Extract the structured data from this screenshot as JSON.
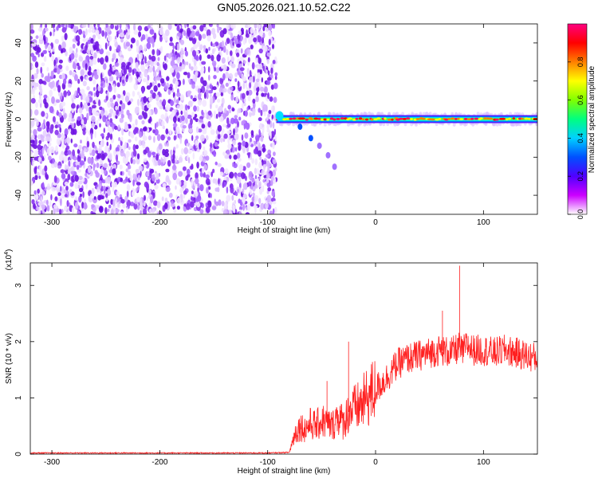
{
  "title": "GN05.2026.021.10.52.C22",
  "chart_data": [
    {
      "type": "heatmap",
      "xlabel": "Height of straight line (km)",
      "ylabel": "Frequency (Hz)",
      "xlim": [
        -320,
        150
      ],
      "ylim": [
        -50,
        50
      ],
      "xticks": [
        -300,
        -200,
        -100,
        0,
        100
      ],
      "yticks": [
        -40,
        -20,
        0,
        20,
        40
      ],
      "noise_region_x": [
        -320,
        -92
      ],
      "signal_line": {
        "x_start": -92,
        "x_end": 150,
        "frequency": 0,
        "branch": {
          "x": [
            -70,
            -60,
            -52,
            -44,
            -38
          ],
          "frequency": [
            -4,
            -10,
            -14,
            -19,
            -25
          ]
        }
      },
      "colorbar": {
        "label": "Normalized spectral amplitude",
        "range": [
          0.0,
          1.0
        ],
        "ticks": [
          0.0,
          0.2,
          0.4,
          0.6,
          0.8
        ],
        "tick_labels": [
          "0.0",
          "0.2",
          "0.4",
          "0.6",
          "0.8"
        ],
        "colormap": [
          "#ffffff",
          "#cc00ff",
          "#5000ff",
          "#0050ff",
          "#00d0ff",
          "#00ff80",
          "#80ff00",
          "#ffff00",
          "#ff8000",
          "#ff0000",
          "#ff0080"
        ]
      },
      "grid": false
    },
    {
      "type": "line",
      "xlabel": "Height of straight line (km)",
      "ylabel": "SNR (10 * v/v)",
      "scale_label": "(x10",
      "scale_exponent": "4",
      "xlim": [
        -320,
        150
      ],
      "ylim": [
        0,
        3.4
      ],
      "xticks": [
        -300,
        -200,
        -100,
        0,
        100
      ],
      "yticks": [
        0,
        1,
        2,
        3
      ],
      "series": [
        {
          "color": "#ff2020",
          "x": [
            -320,
            -200,
            -100,
            -80,
            -75,
            -70,
            -65,
            -60,
            -55,
            -50,
            -45,
            -40,
            -35,
            -30,
            -25,
            -20,
            -15,
            -10,
            -5,
            0,
            10,
            20,
            30,
            40,
            50,
            60,
            70,
            78,
            80,
            85,
            90,
            100,
            110,
            120,
            130,
            140,
            150
          ],
          "values": [
            0.02,
            0.02,
            0.02,
            0.03,
            0.35,
            0.5,
            0.45,
            0.55,
            0.5,
            0.6,
            0.55,
            0.5,
            0.7,
            0.55,
            0.75,
            0.8,
            0.85,
            0.95,
            1.05,
            1.15,
            1.35,
            1.6,
            1.7,
            1.75,
            1.8,
            1.85,
            1.8,
            1.9,
            1.8,
            1.95,
            1.85,
            1.85,
            1.8,
            1.85,
            1.8,
            1.75,
            1.7
          ]
        }
      ],
      "grid": false
    }
  ]
}
